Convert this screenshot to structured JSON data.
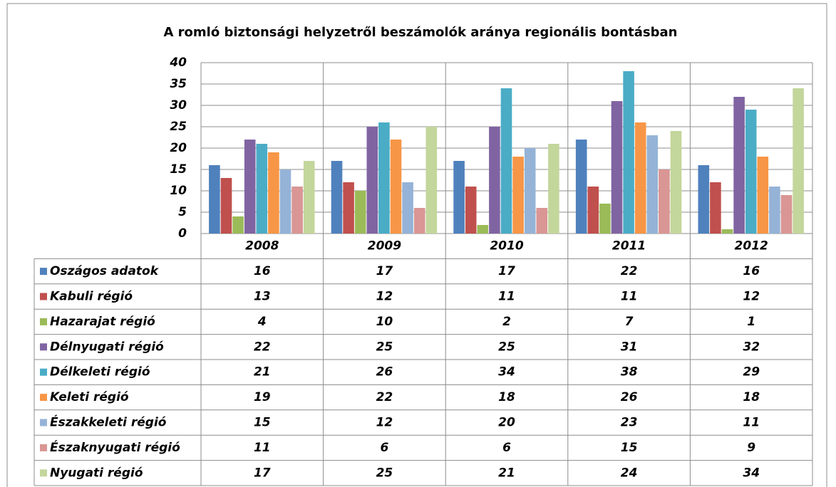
{
  "chart_data": {
    "type": "bar",
    "title": "A romló biztonsági helyzetről beszámolók aránya regionális bontásban",
    "categories": [
      "2008",
      "2009",
      "2010",
      "2011",
      "2012"
    ],
    "series": [
      {
        "name": "Oszágos adatok",
        "color": "#4f81bd",
        "values": [
          16,
          17,
          17,
          22,
          16
        ]
      },
      {
        "name": "Kabuli régió",
        "color": "#c0504d",
        "values": [
          13,
          12,
          11,
          11,
          12
        ]
      },
      {
        "name": "Hazarajat régió",
        "color": "#9bbb59",
        "values": [
          4,
          10,
          2,
          7,
          1
        ]
      },
      {
        "name": "Délnyugati régió",
        "color": "#8064a2",
        "values": [
          22,
          25,
          25,
          31,
          32
        ]
      },
      {
        "name": "Délkeleti régió",
        "color": "#4bacc6",
        "values": [
          21,
          26,
          34,
          38,
          29
        ]
      },
      {
        "name": "Keleti régió",
        "color": "#f79646",
        "values": [
          19,
          22,
          18,
          26,
          18
        ]
      },
      {
        "name": "Északkeleti régió",
        "color": "#95b3d7",
        "values": [
          15,
          12,
          20,
          23,
          11
        ]
      },
      {
        "name": "Északnyugati régió",
        "color": "#d99694",
        "values": [
          11,
          6,
          6,
          15,
          9
        ]
      },
      {
        "name": "Nyugati régió",
        "color": "#c3d69b",
        "values": [
          17,
          25,
          21,
          24,
          34
        ]
      }
    ],
    "ylim": [
      0,
      40
    ],
    "yticks": [
      0,
      5,
      10,
      15,
      20,
      25,
      30,
      35,
      40
    ],
    "grid": true
  }
}
